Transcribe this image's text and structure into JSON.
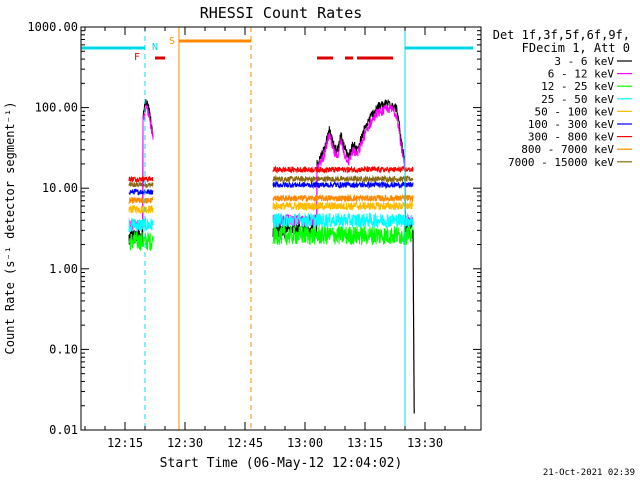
{
  "chart_data": {
    "type": "line",
    "title": "RHESSI Count Rates",
    "xlabel": "Start Time (06-May-12 12:04:02)",
    "ylabel": "Count Rate (s⁻¹ detector segment⁻¹)",
    "yscale": "log",
    "ylim": [
      0.01,
      1000
    ],
    "xlim": [
      "12:04",
      "13:44"
    ],
    "grid": false,
    "legend_position": "top-right",
    "y_ticks": [
      "1000.00",
      "100.00",
      "10.00",
      "1.00",
      "0.10",
      "0.01"
    ],
    "x_ticks": [
      "12:15",
      "12:30",
      "12:45",
      "13:00",
      "13:15",
      "13:30"
    ],
    "legend_header": [
      "Det 1f,3f,5f,6f,9f,",
      "FDecim 1, Att 0"
    ],
    "series": [
      {
        "name": "3 - 6 keV",
        "color": "#000000"
      },
      {
        "name": "6 - 12 keV",
        "color": "#ff00ff"
      },
      {
        "name": "12 - 25 keV",
        "color": "#00ff00"
      },
      {
        "name": "25 - 50 keV",
        "color": "#00ffff"
      },
      {
        "name": "50 - 100 keV",
        "color": "#ffbb00"
      },
      {
        "name": "100 - 300 keV",
        "color": "#0000ff"
      },
      {
        "name": "300 - 800 keV",
        "color": "#ff0000"
      },
      {
        "name": "800 - 7000 keV",
        "color": "#ff8800"
      },
      {
        "name": "7000 - 15000 keV",
        "color": "#8b6914"
      }
    ],
    "segments": [
      {
        "start": "12:16",
        "end": "12:22",
        "levels": {
          "3 - 6 keV": 2.5,
          "6 - 12 keV": 3.5,
          "12 - 25 keV": 2.2,
          "25 - 50 keV": 3.5,
          "50 - 100 keV": 5.5,
          "100 - 300 keV": 9.0,
          "300 - 800 keV": 13.0,
          "800 - 7000 keV": 7.0,
          "7000 - 15000 keV": 11.0
        }
      },
      {
        "start": "12:52",
        "end": "13:27",
        "levels": {
          "3 - 6 keV": 3.0,
          "6 - 12 keV": 4.0,
          "12 - 25 keV": 2.6,
          "25 - 50 keV": 4.0,
          "50 - 100 keV": 6.0,
          "100 - 300 keV": 11.0,
          "300 - 800 keV": 17.0,
          "800 - 7000 keV": 7.5,
          "7000 - 15000 keV": 13.0
        }
      }
    ],
    "flare_profile": [
      {
        "t": "12:19.5",
        "v": 80
      },
      {
        "t": "12:20",
        "v": 110
      },
      {
        "t": "12:20.5",
        "v": 120
      },
      {
        "t": "12:21",
        "v": 90
      },
      {
        "t": "12:21.5",
        "v": 70
      },
      {
        "t": "12:22",
        "v": 45
      },
      {
        "t": "12:22.5",
        "v": 30
      },
      {
        "t": "12:23",
        "v": 20
      },
      {
        "t": "13:03",
        "v": 20
      },
      {
        "t": "13:05",
        "v": 32
      },
      {
        "t": "13:06",
        "v": 55
      },
      {
        "t": "13:07",
        "v": 35
      },
      {
        "t": "13:08",
        "v": 28
      },
      {
        "t": "13:09",
        "v": 45
      },
      {
        "t": "13:10",
        "v": 30
      },
      {
        "t": "13:11",
        "v": 25
      },
      {
        "t": "13:12",
        "v": 35
      },
      {
        "t": "13:13",
        "v": 30
      },
      {
        "t": "13:14",
        "v": 40
      },
      {
        "t": "13:15",
        "v": 55
      },
      {
        "t": "13:16",
        "v": 70
      },
      {
        "t": "13:17",
        "v": 85
      },
      {
        "t": "13:18",
        "v": 100
      },
      {
        "t": "13:19",
        "v": 105
      },
      {
        "t": "13:20",
        "v": 110
      },
      {
        "t": "13:21",
        "v": 115
      },
      {
        "t": "13:22",
        "v": 110
      },
      {
        "t": "13:23",
        "v": 95
      },
      {
        "t": "13:24",
        "v": 40
      },
      {
        "t": "13:25",
        "v": 20
      }
    ],
    "falloff_end": {
      "t": "13:27",
      "v": 0.016
    },
    "markers": [
      {
        "label": "F",
        "color": "#dd0000",
        "bars": [
          [
            "12:22.5",
            "12:25"
          ],
          [
            "13:03",
            "13:07"
          ],
          [
            "13:10",
            "13:12"
          ],
          [
            "13:13",
            "13:22"
          ]
        ]
      },
      {
        "label": "N",
        "color": "#00d8e8",
        "bars": [
          [
            "12:04",
            "12:20"
          ],
          [
            "13:25",
            "13:42"
          ]
        ]
      },
      {
        "label": "S",
        "color": "#ff8800",
        "bars": [
          [
            "12:28.5",
            "12:46.5"
          ]
        ]
      }
    ],
    "vlines": [
      {
        "t": "12:04",
        "color": "#00e0f0",
        "style": "solid"
      },
      {
        "t": "12:20",
        "color": "#00e0f0",
        "style": "dashed"
      },
      {
        "t": "12:28.5",
        "color": "#ff8800",
        "style": "solid"
      },
      {
        "t": "12:46.5",
        "color": "#ff8800",
        "style": "dashed"
      },
      {
        "t": "13:25",
        "color": "#00e0f0",
        "style": "solid"
      },
      {
        "t": "13:44",
        "color": "#00e0f0",
        "style": "dashed"
      }
    ]
  },
  "footer": {
    "date_stamp": "21-Oct-2021 02:39"
  }
}
